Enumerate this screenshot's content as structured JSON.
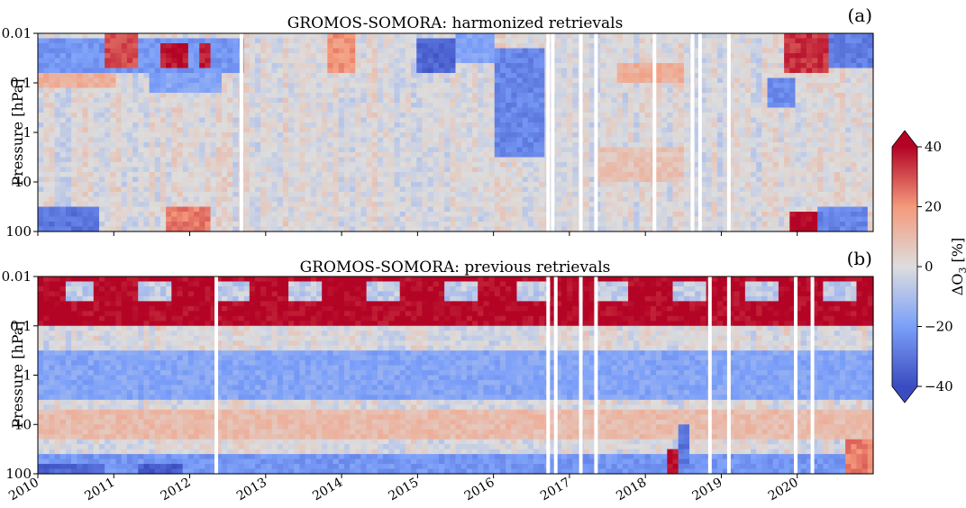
{
  "chart_data": {
    "type": "heatmap",
    "colormap": "coolwarm",
    "value_range": [
      -40,
      40
    ],
    "x_ticks": [
      "2010",
      "2011",
      "2012",
      "2013",
      "2014",
      "2015",
      "2016",
      "2017",
      "2018",
      "2019",
      "2020"
    ],
    "x_range": [
      2010.0,
      2021.0
    ],
    "y_scale": "log",
    "y_ticks": [
      "0.01",
      "0.1",
      "1",
      "10",
      "100"
    ],
    "y_range": [
      100,
      0.01
    ],
    "panels": [
      {
        "id": "a",
        "title": "GROMOS-SOMORA: harmonized retrievals",
        "letter": "(a)",
        "ylabel": "Pressure [hPa]",
        "data_gaps": [
          2012.68,
          2016.72,
          2016.78,
          2017.15,
          2017.35,
          2018.12,
          2018.62,
          2018.72,
          2019.1
        ],
        "features": [
          {
            "x": [
              2010.0,
              2012.7
            ],
            "p": [
              0.012,
              0.06
            ],
            "value": -22
          },
          {
            "x": [
              2010.9,
              2011.3
            ],
            "p": [
              0.01,
              0.05
            ],
            "value": 30
          },
          {
            "x": [
              2011.6,
              2012.0
            ],
            "p": [
              0.015,
              0.05
            ],
            "value": 38
          },
          {
            "x": [
              2012.15,
              2012.25
            ],
            "p": [
              0.015,
              0.05
            ],
            "value": 36
          },
          {
            "x": [
              2010.0,
              2011.0
            ],
            "p": [
              0.06,
              0.12
            ],
            "value": 14
          },
          {
            "x": [
              2011.5,
              2012.4
            ],
            "p": [
              0.06,
              0.15
            ],
            "value": -18
          },
          {
            "x": [
              2010.0,
              2010.8
            ],
            "p": [
              30,
              100
            ],
            "value": -30
          },
          {
            "x": [
              2011.7,
              2012.3
            ],
            "p": [
              30,
              100
            ],
            "value": 24
          },
          {
            "x": [
              2013.8,
              2014.2
            ],
            "p": [
              0.01,
              0.06
            ],
            "value": 20
          },
          {
            "x": [
              2015.0,
              2015.5
            ],
            "p": [
              0.012,
              0.06
            ],
            "value": -34
          },
          {
            "x": [
              2015.5,
              2016.0
            ],
            "p": [
              0.01,
              0.04
            ],
            "value": -18
          },
          {
            "x": [
              2016.0,
              2016.65
            ],
            "p": [
              0.02,
              3
            ],
            "value": -26
          },
          {
            "x": [
              2017.6,
              2018.5
            ],
            "p": [
              0.04,
              0.1
            ],
            "value": 14
          },
          {
            "x": [
              2017.3,
              2018.5
            ],
            "p": [
              2,
              10
            ],
            "value": 8
          },
          {
            "x": [
              2019.8,
              2020.4
            ],
            "p": [
              0.01,
              0.06
            ],
            "value": 34
          },
          {
            "x": [
              2020.4,
              2021.0
            ],
            "p": [
              0.01,
              0.05
            ],
            "value": -28
          },
          {
            "x": [
              2019.6,
              2020.0
            ],
            "p": [
              0.08,
              0.3
            ],
            "value": -24
          },
          {
            "x": [
              2019.9,
              2020.3
            ],
            "p": [
              40,
              100
            ],
            "value": 40
          },
          {
            "x": [
              2020.3,
              2020.9
            ],
            "p": [
              30,
              100
            ],
            "value": -26
          }
        ]
      },
      {
        "id": "b",
        "title": "GROMOS-SOMORA: previous retrievals",
        "letter": "(b)",
        "ylabel": "Pressure [hPa]",
        "data_gaps": [
          2012.35,
          2016.72,
          2016.82,
          2017.15,
          2017.35,
          2018.85,
          2019.1,
          2019.98,
          2020.2
        ],
        "features": [
          {
            "x": [
              2010.0,
              2021.0
            ],
            "p": [
              0.01,
              0.1
            ],
            "value": 40
          },
          {
            "x": [
              2010.0,
              2021.0
            ],
            "p": [
              0.3,
              3
            ],
            "value": -18
          },
          {
            "x": [
              2010.0,
              2021.0
            ],
            "p": [
              5,
              20
            ],
            "value": 10
          },
          {
            "x": [
              2010.0,
              2021.0
            ],
            "p": [
              40,
              100
            ],
            "value": -22
          },
          {
            "x": [
              2010.0,
              2010.9
            ],
            "p": [
              60,
              100
            ],
            "value": -34
          },
          {
            "x": [
              2011.3,
              2011.9
            ],
            "p": [
              60,
              100
            ],
            "value": -36
          },
          {
            "x": [
              2018.3,
              2018.45
            ],
            "p": [
              30,
              100
            ],
            "value": 40
          },
          {
            "x": [
              2018.45,
              2018.6
            ],
            "p": [
              10,
              80
            ],
            "value": -30
          },
          {
            "x": [
              2020.6,
              2021.0
            ],
            "p": [
              20,
              100
            ],
            "value": 24
          }
        ],
        "summer_minima_upper": [
          {
            "center": 2010.55,
            "width": 0.22
          },
          {
            "center": 2011.55,
            "width": 0.22
          },
          {
            "center": 2012.55,
            "width": 0.22
          },
          {
            "center": 2013.55,
            "width": 0.22
          },
          {
            "center": 2014.55,
            "width": 0.22
          },
          {
            "center": 2015.55,
            "width": 0.22
          },
          {
            "center": 2016.55,
            "width": 0.22
          },
          {
            "center": 2017.55,
            "width": 0.22
          },
          {
            "center": 2018.55,
            "width": 0.22
          },
          {
            "center": 2019.55,
            "width": 0.22
          },
          {
            "center": 2020.55,
            "width": 0.22
          }
        ]
      }
    ],
    "colorbar": {
      "label": "ΔO",
      "label_sub": "3",
      "label_unit": " [%]",
      "ticks": [
        "40",
        "20",
        "0",
        "−20",
        "−40"
      ],
      "tick_values": [
        40,
        20,
        0,
        -20,
        -40
      ]
    }
  }
}
